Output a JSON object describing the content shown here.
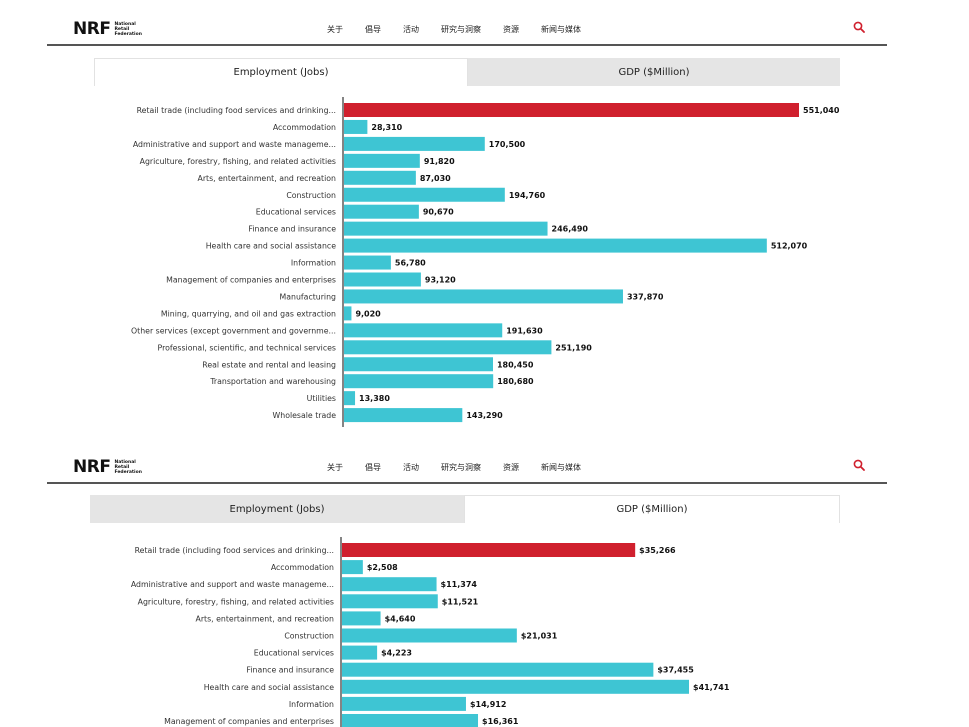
{
  "header": {
    "logo_mark": "NRF",
    "logo_lines": [
      "National",
      "Retail",
      "Federation"
    ],
    "nav": [
      "关于",
      "倡导",
      "活动",
      "研究与洞察",
      "资源",
      "新闻与媒体"
    ],
    "search_icon": "search-icon",
    "accent_color": "#d0202e"
  },
  "tabs": [
    {
      "label": "Employment (Jobs)"
    },
    {
      "label": "GDP ($Million)"
    }
  ],
  "chart_data": [
    {
      "type": "bar",
      "orientation": "horizontal",
      "active_tab": "Employment (Jobs)",
      "categories": [
        "Retail trade (including food services and drinking...",
        "Accommodation",
        "Administrative and support and waste manageme...",
        "Agriculture, forestry, fishing, and related activities",
        "Arts, entertainment, and recreation",
        "Construction",
        "Educational services",
        "Finance and insurance",
        "Health care and social assistance",
        "Information",
        "Management of companies and enterprises",
        "Manufacturing",
        "Mining, quarrying, and oil and gas extraction",
        "Other services (except government and governme...",
        "Professional, scientific, and technical services",
        "Real estate and rental and leasing",
        "Transportation and warehousing",
        "Utilities",
        "Wholesale trade"
      ],
      "values": [
        551040,
        28310,
        170500,
        91820,
        87030,
        194760,
        90670,
        246490,
        512070,
        56780,
        93120,
        337870,
        9020,
        191630,
        251190,
        180450,
        180680,
        13380,
        143290
      ],
      "value_labels": [
        "551,040",
        "28,310",
        "170,500",
        "91,820",
        "87,030",
        "194,760",
        "90,670",
        "246,490",
        "512,070",
        "56,780",
        "93,120",
        "337,870",
        "9,020",
        "191,630",
        "251,190",
        "180,450",
        "180,680",
        "13,380",
        "143,290"
      ],
      "highlight_index": 0,
      "colors": {
        "highlight": "#d0202e",
        "default": "#3ec5d3"
      }
    },
    {
      "type": "bar",
      "orientation": "horizontal",
      "active_tab": "GDP ($Million)",
      "categories": [
        "Retail trade (including food services and drinking...",
        "Accommodation",
        "Administrative and support and waste manageme...",
        "Agriculture, forestry, fishing, and related activities",
        "Arts, entertainment, and recreation",
        "Construction",
        "Educational services",
        "Finance and insurance",
        "Health care and social assistance",
        "Information",
        "Management of companies and enterprises"
      ],
      "values": [
        35266,
        2508,
        11374,
        11521,
        4640,
        21031,
        4223,
        37455,
        41741,
        14912,
        16361
      ],
      "value_labels": [
        "$35,266",
        "$2,508",
        "$11,374",
        "$11,521",
        "$4,640",
        "$21,031",
        "$4,223",
        "$37,455",
        "$41,741",
        "$14,912",
        "$16,361"
      ],
      "highlight_index": 0,
      "colors": {
        "highlight": "#d0202e",
        "default": "#3ec5d3"
      }
    }
  ]
}
